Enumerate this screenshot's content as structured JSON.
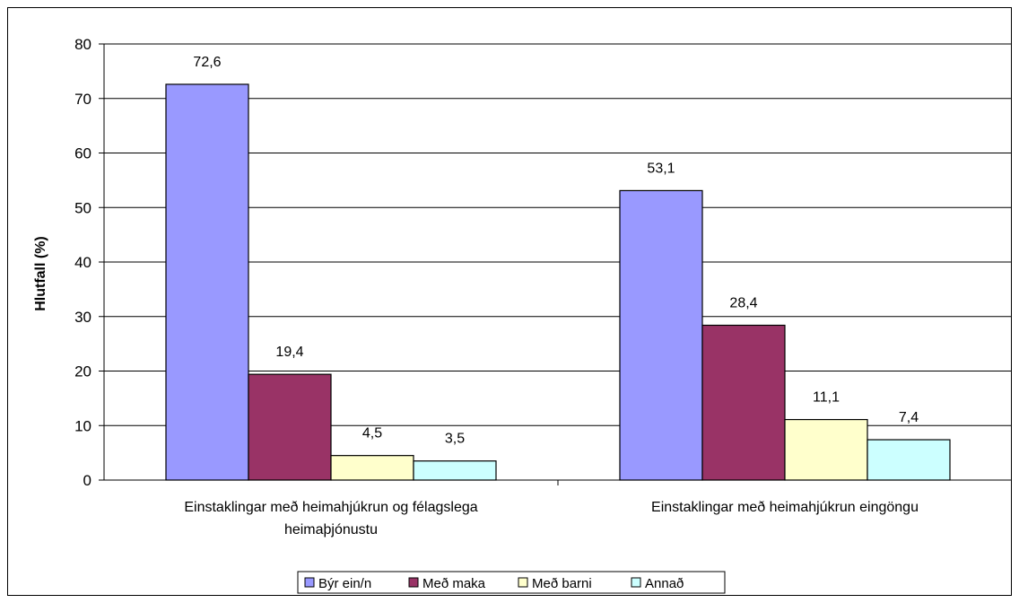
{
  "chart_data": {
    "type": "bar",
    "title": "",
    "xlabel": "",
    "ylabel": "Hlutfall (%)",
    "ylim": [
      0,
      80
    ],
    "yticks": [
      0,
      10,
      20,
      30,
      40,
      50,
      60,
      70,
      80
    ],
    "grid": true,
    "legend_position": "bottom",
    "categories": [
      "Einstaklingar með heimahjúkrun og félagslega heimaþjónustu",
      "Einstaklingar með heimahjúkrun eingöngu"
    ],
    "category_lines": [
      [
        "Einstaklingar með heimahjúkrun og félagslega",
        "heimaþjónustu"
      ],
      [
        "Einstaklingar með heimahjúkrun eingöngu"
      ]
    ],
    "series": [
      {
        "name": "Býr ein/n",
        "color": "#9999ff",
        "values": [
          72.6,
          53.1
        ],
        "labels": [
          "72,6",
          "53,1"
        ]
      },
      {
        "name": "Með maka",
        "color": "#993366",
        "values": [
          19.4,
          28.4
        ],
        "labels": [
          "19,4",
          "28,4"
        ]
      },
      {
        "name": "Með barni",
        "color": "#ffffcc",
        "values": [
          4.5,
          11.1
        ],
        "labels": [
          "4,5",
          "11,1"
        ]
      },
      {
        "name": "Annað",
        "color": "#ccffff",
        "values": [
          3.5,
          7.4
        ],
        "labels": [
          "3,5",
          "7,4"
        ]
      }
    ]
  }
}
